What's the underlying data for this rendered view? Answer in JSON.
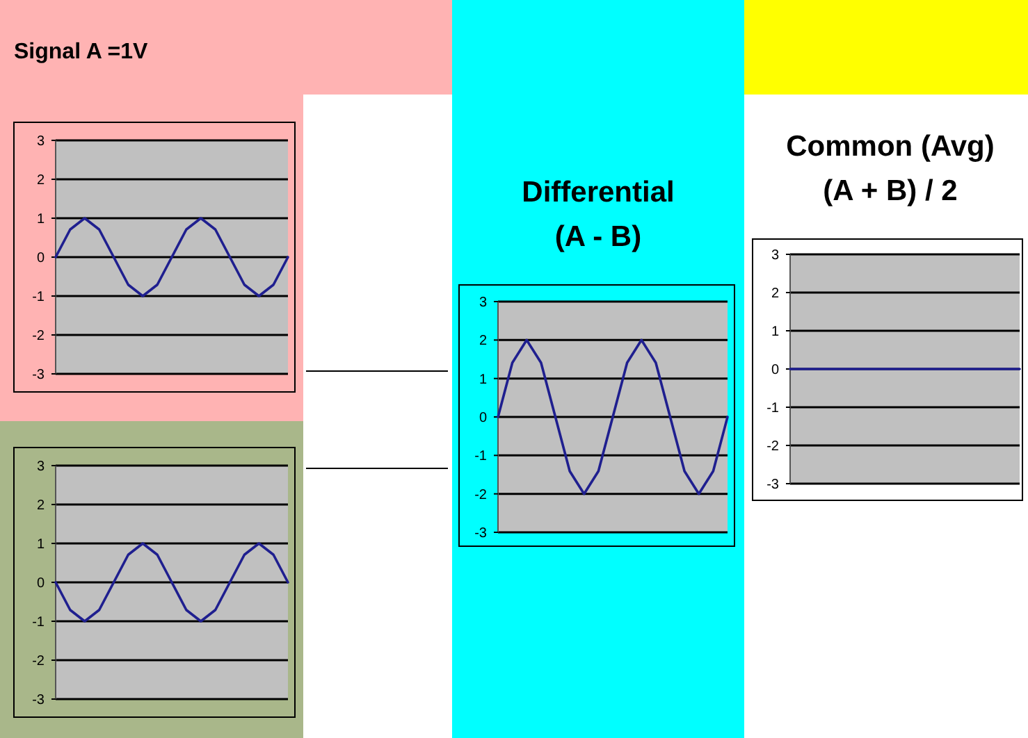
{
  "chart_data": [
    {
      "type": "line",
      "title": "Signal A =1V",
      "categories": [
        null,
        null,
        null,
        null,
        null,
        null,
        null,
        null,
        null,
        null,
        null,
        null,
        null,
        null,
        null,
        null,
        null
      ],
      "series": [
        {
          "color": "#1f1f8f",
          "values": [
            0,
            0.71,
            1,
            0.71,
            0,
            -0.71,
            -1,
            -0.71,
            0,
            0.71,
            1,
            0.71,
            0,
            -0.71,
            -1,
            -0.71,
            0
          ]
        }
      ],
      "ylim": [
        -3,
        3
      ],
      "yticks": [
        -3,
        -2,
        -1,
        0,
        1,
        2,
        3
      ],
      "grid": "y",
      "tick_labels": "y"
    },
    {
      "type": "line",
      "categories": [
        null,
        null,
        null,
        null,
        null,
        null,
        null,
        null,
        null,
        null,
        null,
        null,
        null,
        null,
        null,
        null,
        null
      ],
      "series": [
        {
          "color": "#1f1f8f",
          "values": [
            0,
            -0.71,
            -1,
            -0.71,
            0,
            0.71,
            1,
            0.71,
            0,
            -0.71,
            -1,
            -0.71,
            0,
            0.71,
            1,
            0.71,
            0
          ]
        }
      ],
      "ylim": [
        -3,
        3
      ],
      "yticks": [
        -3,
        -2,
        -1,
        0,
        1,
        2,
        3
      ],
      "grid": "y",
      "tick_labels": "y"
    },
    {
      "type": "line",
      "title": "Differential",
      "subtitle": "(A - B)",
      "categories": [
        null,
        null,
        null,
        null,
        null,
        null,
        null,
        null,
        null,
        null,
        null,
        null,
        null,
        null,
        null,
        null,
        null
      ],
      "series": [
        {
          "color": "#1f1f8f",
          "values": [
            0,
            1.41,
            2,
            1.41,
            0,
            -1.41,
            -2,
            -1.41,
            0,
            1.41,
            2,
            1.41,
            0,
            -1.41,
            -2,
            -1.41,
            0
          ]
        }
      ],
      "ylim": [
        -3,
        3
      ],
      "yticks": [
        -3,
        -2,
        -1,
        0,
        1,
        2,
        3
      ],
      "grid": "y",
      "tick_labels": "y"
    },
    {
      "type": "line",
      "title": "Common (Avg)",
      "subtitle": "(A + B) / 2",
      "categories": [
        null,
        null,
        null,
        null,
        null,
        null,
        null,
        null,
        null,
        null,
        null,
        null,
        null,
        null,
        null,
        null,
        null
      ],
      "series": [
        {
          "color": "#1f1f8f",
          "values": [
            0,
            0,
            0,
            0,
            0,
            0,
            0,
            0,
            0,
            0,
            0,
            0,
            0,
            0,
            0,
            0,
            0
          ]
        }
      ],
      "ylim": [
        -3,
        3
      ],
      "yticks": [
        -3,
        -2,
        -1,
        0,
        1,
        2,
        3
      ],
      "grid": "y",
      "tick_labels": "y"
    }
  ]
}
